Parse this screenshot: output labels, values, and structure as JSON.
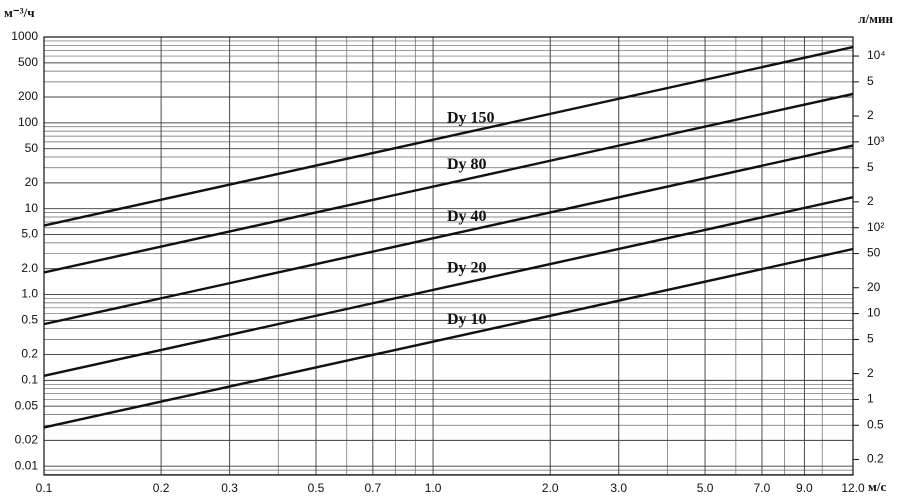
{
  "chart_data": {
    "type": "line",
    "y_label": "м⁻³/ч",
    "y2_label": "л/мин",
    "x_label": "м/с",
    "log_x": true,
    "log_y": true,
    "grid": true,
    "minor_grid": true,
    "x": [
      0.1,
      12.0
    ],
    "xlim": [
      0.1,
      12.0
    ],
    "xticks": [
      0.1,
      0.2,
      0.3,
      0.5,
      0.7,
      {
        "value": 1,
        "label": "1.0"
      },
      {
        "value": 2,
        "label": "2.0"
      },
      {
        "value": 3,
        "label": "3.0"
      },
      {
        "value": 5,
        "label": "5.0"
      },
      {
        "value": 7,
        "label": "7.0"
      },
      {
        "value": 9,
        "label": "9.0"
      },
      {
        "value": 12,
        "label": "12.0"
      }
    ],
    "ylim": [
      0.0079,
      1000
    ],
    "yticks": [
      1000,
      500,
      200,
      100,
      50,
      20,
      10,
      {
        "value": 5,
        "label": "5.0"
      },
      {
        "value": 2,
        "label": "2.0"
      },
      {
        "value": 1,
        "label": "1.0"
      },
      0.5,
      0.2,
      0.1,
      0.05,
      0.02,
      0.01
    ],
    "y2lim": [
      0.1317,
      16667
    ],
    "y2ticks": [
      {
        "value": 10000,
        "label": "10⁴"
      },
      {
        "value": 5000,
        "label": "5"
      },
      {
        "value": 2000,
        "label": "2"
      },
      {
        "value": 1000,
        "label": "10³"
      },
      {
        "value": 500,
        "label": "5"
      },
      {
        "value": 200,
        "label": "2"
      },
      {
        "value": 100,
        "label": "10²"
      },
      50,
      20,
      10,
      5,
      2,
      1,
      0.5,
      0.2
    ],
    "series": [
      {
        "name": "Dy 150",
        "color": "#111111",
        "values": [
          6.36,
          763
        ]
      },
      {
        "name": "Dy 80",
        "color": "#111111",
        "values": [
          1.81,
          217
        ]
      },
      {
        "name": "Dy 40",
        "color": "#111111",
        "values": [
          0.452,
          54.3
        ]
      },
      {
        "name": "Dy 20",
        "color": "#111111",
        "values": [
          0.113,
          13.6
        ]
      },
      {
        "name": "Dy 10",
        "color": "#111111",
        "values": [
          0.0283,
          3.39
        ]
      }
    ]
  }
}
